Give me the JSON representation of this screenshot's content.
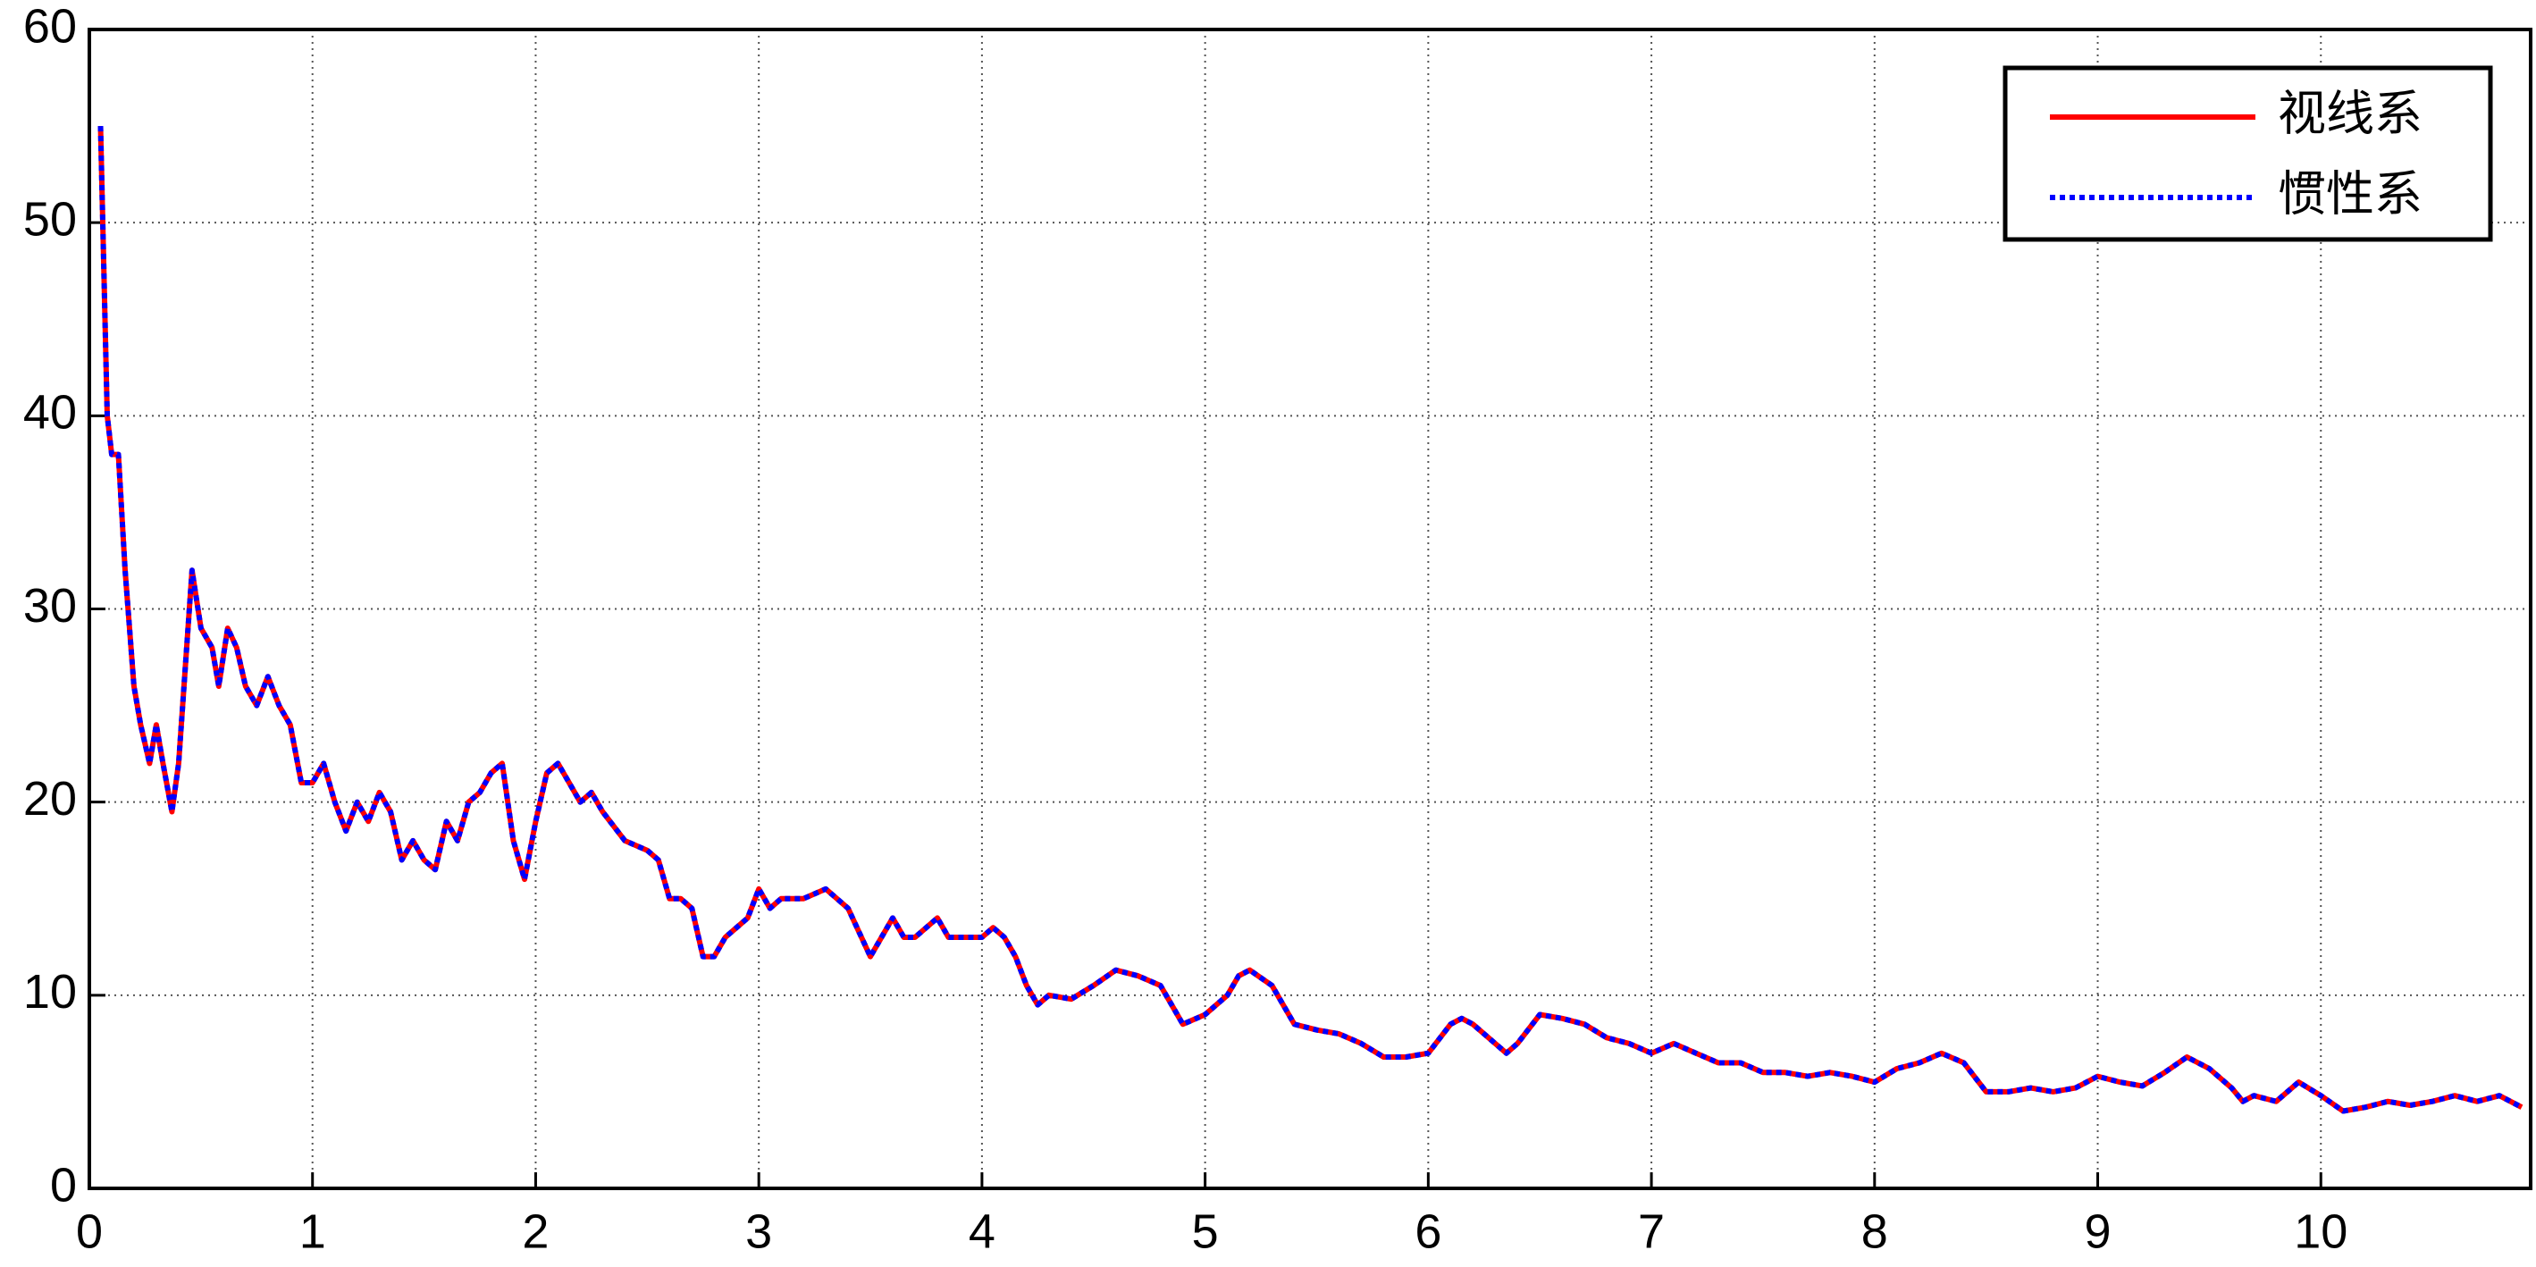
{
  "chart_data": {
    "type": "line",
    "x": [
      0.05,
      0.06,
      0.08,
      0.1,
      0.13,
      0.16,
      0.2,
      0.23,
      0.27,
      0.3,
      0.33,
      0.37,
      0.4,
      0.43,
      0.46,
      0.5,
      0.55,
      0.58,
      0.62,
      0.66,
      0.7,
      0.75,
      0.8,
      0.85,
      0.9,
      0.95,
      1.0,
      1.05,
      1.1,
      1.15,
      1.2,
      1.25,
      1.3,
      1.35,
      1.4,
      1.45,
      1.5,
      1.55,
      1.6,
      1.65,
      1.7,
      1.75,
      1.8,
      1.85,
      1.9,
      1.95,
      2.0,
      2.05,
      2.1,
      2.15,
      2.2,
      2.25,
      2.3,
      2.4,
      2.5,
      2.55,
      2.6,
      2.65,
      2.7,
      2.75,
      2.8,
      2.85,
      2.9,
      2.95,
      3.0,
      3.05,
      3.1,
      3.2,
      3.3,
      3.4,
      3.5,
      3.55,
      3.6,
      3.65,
      3.7,
      3.8,
      3.85,
      3.9,
      4.0,
      4.05,
      4.1,
      4.15,
      4.2,
      4.25,
      4.3,
      4.4,
      4.5,
      4.6,
      4.7,
      4.8,
      4.85,
      4.9,
      5.0,
      5.1,
      5.15,
      5.2,
      5.3,
      5.4,
      5.5,
      5.6,
      5.7,
      5.8,
      5.9,
      6.0,
      6.1,
      6.15,
      6.2,
      6.3,
      6.35,
      6.4,
      6.5,
      6.6,
      6.7,
      6.8,
      6.9,
      7.0,
      7.1,
      7.2,
      7.3,
      7.4,
      7.5,
      7.6,
      7.7,
      7.8,
      7.9,
      8.0,
      8.1,
      8.2,
      8.3,
      8.4,
      8.5,
      8.6,
      8.7,
      8.8,
      8.9,
      9.0,
      9.1,
      9.2,
      9.3,
      9.4,
      9.5,
      9.6,
      9.65,
      9.7,
      9.8,
      9.9,
      10.0,
      10.1,
      10.2,
      10.3,
      10.4,
      10.5,
      10.6,
      10.7,
      10.8,
      10.9
    ],
    "series": [
      {
        "name": "视线系",
        "color": "#ff0000",
        "dash": false,
        "values": [
          55,
          50,
          40,
          38,
          38,
          32,
          26,
          24,
          22,
          24,
          22,
          19.5,
          22,
          27,
          32,
          29,
          28,
          26,
          29,
          28,
          26,
          25,
          26.5,
          25,
          24,
          21,
          21,
          22,
          20,
          18.5,
          20,
          19,
          20.5,
          19.5,
          17,
          18,
          17,
          16.5,
          19,
          18,
          20,
          20.5,
          21.5,
          22,
          18,
          16,
          19,
          21.5,
          22,
          21,
          20,
          20.5,
          19.5,
          18,
          17.5,
          17,
          15,
          15,
          14.5,
          12,
          12,
          13,
          13.5,
          14,
          15.5,
          14.5,
          15,
          15,
          15.5,
          14.5,
          12,
          13,
          14,
          13,
          13,
          14,
          13,
          13,
          13,
          13.5,
          13,
          12,
          10.5,
          9.5,
          10,
          9.8,
          10.5,
          11.3,
          11,
          10.5,
          9.5,
          8.5,
          9,
          10,
          11,
          11.3,
          10.5,
          8.5,
          8.2,
          8,
          7.5,
          6.8,
          6.8,
          7,
          8.5,
          8.8,
          8.5,
          7.5,
          7,
          7.5,
          9,
          8.8,
          8.5,
          7.8,
          7.5,
          7,
          7.5,
          7,
          6.5,
          6.5,
          6,
          6,
          5.8,
          6,
          5.8,
          5.5,
          6.2,
          6.5,
          7,
          6.5,
          5,
          5,
          5.2,
          5,
          5.2,
          5.8,
          5.5,
          5.3,
          6,
          6.8,
          6.2,
          5.2,
          4.5,
          4.8,
          4.5,
          5.5,
          4.8,
          4,
          4.2,
          4.5,
          4.3,
          4.5,
          4.8,
          4.5,
          4.8,
          4.2
        ]
      },
      {
        "name": "惯性系",
        "color": "#0000ff",
        "dash": true,
        "values": [
          55,
          50,
          40,
          38,
          38,
          32,
          26,
          24,
          22,
          24,
          22,
          19.5,
          22,
          27,
          32,
          29,
          28,
          26,
          29,
          28,
          26,
          25,
          26.5,
          25,
          24,
          21,
          21,
          22,
          20,
          18.5,
          20,
          19,
          20.5,
          19.5,
          17,
          18,
          17,
          16.5,
          19,
          18,
          20,
          20.5,
          21.5,
          22,
          18,
          16,
          19,
          21.5,
          22,
          21,
          20,
          20.5,
          19.5,
          18,
          17.5,
          17,
          15,
          15,
          14.5,
          12,
          12,
          13,
          13.5,
          14,
          15.5,
          14.5,
          15,
          15,
          15.5,
          14.5,
          12,
          13,
          14,
          13,
          13,
          14,
          13,
          13,
          13,
          13.5,
          13,
          12,
          10.5,
          9.5,
          10,
          9.8,
          10.5,
          11.3,
          11,
          10.5,
          9.5,
          8.5,
          9,
          10,
          11,
          11.3,
          10.5,
          8.5,
          8.2,
          8,
          7.5,
          6.8,
          6.8,
          7,
          8.5,
          8.8,
          8.5,
          7.5,
          7,
          7.5,
          9,
          8.8,
          8.5,
          7.8,
          7.5,
          7,
          7.5,
          7,
          6.5,
          6.5,
          6,
          6,
          5.8,
          6,
          5.8,
          5.5,
          6.2,
          6.5,
          7,
          6.5,
          5,
          5,
          5.2,
          5,
          5.2,
          5.8,
          5.5,
          5.3,
          6,
          6.8,
          6.2,
          5.2,
          4.5,
          4.8,
          4.5,
          5.5,
          4.8,
          4,
          4.2,
          4.5,
          4.3,
          4.5,
          4.8,
          4.5,
          4.8,
          4.2
        ]
      }
    ],
    "xlim": [
      0,
      10.94
    ],
    "xticks": [
      0,
      1,
      2,
      3,
      4,
      5,
      6,
      7,
      8,
      9,
      10
    ],
    "ylim": [
      0,
      60
    ],
    "yticks": [
      0,
      10,
      20,
      30,
      40,
      50,
      60
    ],
    "grid": true,
    "legend": "upper right"
  }
}
